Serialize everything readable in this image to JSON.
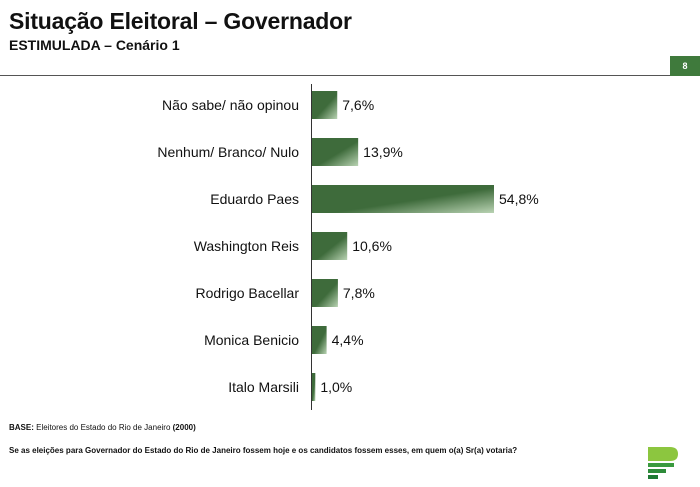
{
  "header": {
    "title": "Situação Eleitoral – Governador",
    "subtitle": "ESTIMULADA – Cenário 1",
    "page_number": "8"
  },
  "footer": {
    "base_label": "BASE:",
    "base_text": " Eleitores do Estado do Rio de Janeiro ",
    "base_count": "(2000)",
    "question": "Se as eleições para Governador do Estado do Rio de Janeiro fossem hoje e os candidatos fossem esses, em quem o(a) Sr(a) votaria?"
  },
  "colors": {
    "bar_dark": "#3e6b3b",
    "bar_light": "#b9d3b3",
    "accent": "#3f7a3c"
  },
  "chart_data": {
    "type": "bar",
    "orientation": "horizontal",
    "categories": [
      "Não sabe/ não opinou",
      "Nenhum/ Branco/ Nulo",
      "Eduardo Paes",
      "Washington Reis",
      "Rodrigo Bacellar",
      "Monica Benicio",
      "Italo Marsili"
    ],
    "values": [
      7.6,
      13.9,
      54.8,
      10.6,
      7.8,
      4.4,
      1.0
    ],
    "value_labels": [
      "7,6%",
      "13,9%",
      "54,8%",
      "10,6%",
      "7,8%",
      "4,4%",
      "1,0%"
    ],
    "unit": "%",
    "xlim": [
      0,
      54.8
    ],
    "grid": false,
    "legend": "none"
  }
}
